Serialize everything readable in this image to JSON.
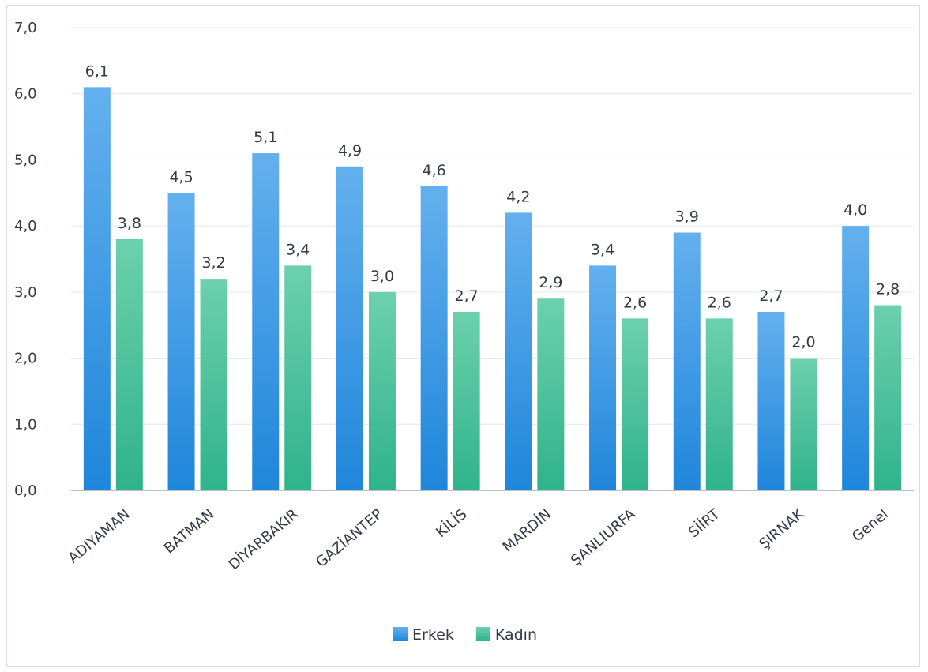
{
  "chart_data": {
    "type": "bar",
    "categories": [
      "ADIYAMAN",
      "BATMAN",
      "DİYARBAKIR",
      "GAZİANTEP",
      "KİLİS",
      "MARDİN",
      "ŞANLIURFA",
      "SİİRT",
      "ŞIRNAK",
      "Genel"
    ],
    "series": [
      {
        "name": "Erkek",
        "values": [
          6.1,
          4.5,
          5.1,
          4.9,
          4.6,
          4.2,
          3.4,
          3.9,
          2.7,
          4.0
        ],
        "labels": [
          "6,1",
          "4,5",
          "5,1",
          "4,9",
          "4,6",
          "4,2",
          "3,4",
          "3,9",
          "2,7",
          "4,0"
        ],
        "color": "#2f8fe0"
      },
      {
        "name": "Kadın",
        "values": [
          3.8,
          3.2,
          3.4,
          3.0,
          2.7,
          2.9,
          2.6,
          2.6,
          2.0,
          2.8
        ],
        "labels": [
          "3,8",
          "3,2",
          "3,4",
          "3,0",
          "2,7",
          "2,9",
          "2,6",
          "2,6",
          "2,0",
          "2,8"
        ],
        "color": "#36b98e"
      }
    ],
    "yticks": [
      "0,0",
      "1,0",
      "2,0",
      "3,0",
      "4,0",
      "5,0",
      "6,0",
      "7,0"
    ],
    "ylim": [
      0,
      7
    ],
    "title": "",
    "xlabel": "",
    "ylabel": "",
    "grid": true,
    "legend_position": "bottom"
  }
}
